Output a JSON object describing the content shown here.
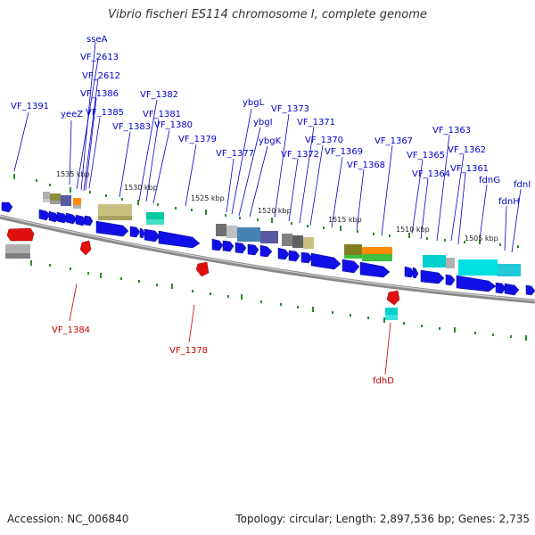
{
  "title": "Vibrio fischeri ES114 chromosome I, complete genome",
  "footer": {
    "accession": "Accession: NC_006840",
    "summary": "Topology: circular; Length: 2,897,536 bp; Genes: 2,735"
  },
  "colors": {
    "forward_cds": "#1010e6",
    "reverse_cds": "#e01010",
    "backbone": "#8a8a8a",
    "ticks": "#2a8a2a",
    "upper_label": "#0000cc",
    "lower_label": "#cc0000"
  },
  "scale_labels": [
    "1535 kbp",
    "1530 kbp",
    "1525 kbp",
    "1520 kbp",
    "1515 kbp",
    "1510 kbp",
    "1505 kbp"
  ],
  "upper_labels": [
    "sseA",
    "VF_2613",
    "VF_2612",
    "VF_1386",
    "VF_1385",
    "yeeZ",
    "VF_1391",
    "VF_1383",
    "VF_1382",
    "VF_1381",
    "VF_1380",
    "VF_1379",
    "ybgL",
    "ybgI",
    "VF_1377",
    "ybgK",
    "VF_1373",
    "VF_1371",
    "VF_1372",
    "VF_1370",
    "VF_1369",
    "VF_1368",
    "VF_1367",
    "VF_1365",
    "VF_1364",
    "VF_1363",
    "VF_1362",
    "VF_1361",
    "fdnG",
    "fdnI",
    "fdnH"
  ],
  "lower_labels": [
    "VF_1384",
    "VF_1378",
    "fdhD"
  ]
}
